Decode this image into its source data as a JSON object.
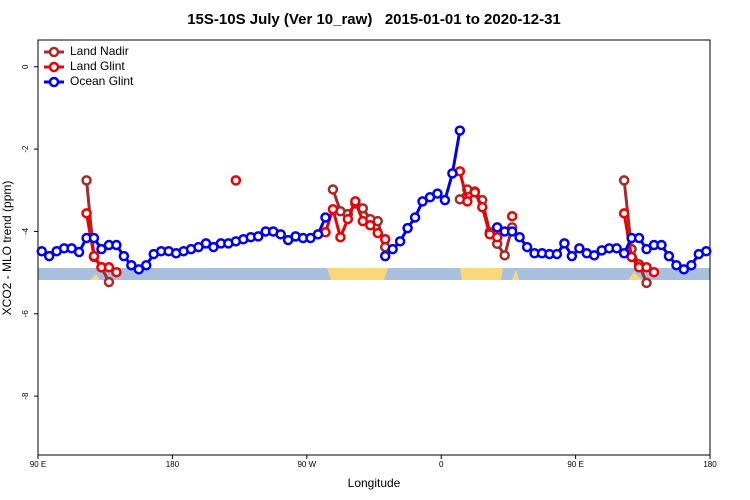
{
  "chart_data": {
    "type": "line",
    "title": "15S-10S July (Ver 10_raw)   2015-01-01 to 2020-12-31",
    "x_label": "Longitude",
    "y_label": "XCO2 - MLO trend (ppm)",
    "xlim": [
      90,
      540
    ],
    "ylim": [
      -9.43,
      0.65
    ],
    "xticks": [
      {
        "value": 90,
        "label": "90 E"
      },
      {
        "value": 180,
        "label": "180"
      },
      {
        "value": 270,
        "label": "90 W"
      },
      {
        "value": 360,
        "label": "0"
      },
      {
        "value": 450,
        "label": "90 E"
      },
      {
        "value": 540,
        "label": "180"
      }
    ],
    "yticks": [
      0,
      -2,
      -4,
      -6,
      -8
    ],
    "legend": "top-left",
    "x": [
      92.5,
      97.5,
      102.5,
      107.5,
      112.5,
      117.5,
      122.5,
      127.5,
      132.5,
      137.5,
      142.5,
      147.5,
      152.5,
      157.5,
      162.5,
      167.5,
      172.5,
      177.5,
      182.5,
      187.5,
      192.5,
      197.5,
      202.5,
      207.5,
      212.5,
      217.5,
      222.5,
      227.5,
      232.5,
      237.5,
      242.5,
      247.5,
      252.5,
      257.5,
      262.5,
      267.5,
      272.5,
      277.5,
      282.5,
      287.5,
      292.5,
      297.5,
      302.5,
      307.5,
      312.5,
      317.5,
      322.5,
      327.5,
      332.5,
      337.5,
      342.5,
      347.5,
      352.5,
      357.5,
      362.5,
      367.5,
      372.5,
      377.5,
      382.5,
      387.5,
      392.5,
      397.5,
      402.5,
      407.5,
      412.5,
      417.5,
      422.5,
      427.5,
      432.5,
      437.5,
      442.5,
      447.5,
      452.5,
      457.5,
      462.5,
      467.5,
      472.5,
      477.5,
      482.5,
      487.5,
      492.5,
      497.5,
      502.5,
      507.5,
      512.5,
      517.5,
      522.5,
      527.5,
      532.5,
      537.5
    ],
    "series": [
      {
        "name": "Land Nadir",
        "color": "#a52a2a",
        "values": [
          null,
          null,
          null,
          null,
          null,
          null,
          -2.76,
          -4.62,
          -4.87,
          -5.23,
          null,
          null,
          null,
          null,
          null,
          null,
          null,
          null,
          null,
          null,
          null,
          null,
          null,
          null,
          null,
          null,
          null,
          null,
          null,
          null,
          null,
          null,
          null,
          null,
          null,
          null,
          null,
          null,
          null,
          -2.98,
          -3.51,
          -3.58,
          -3.32,
          -3.44,
          -3.7,
          -3.75,
          -4.38,
          null,
          null,
          null,
          null,
          null,
          null,
          null,
          null,
          null,
          -3.22,
          -2.98,
          -3.03,
          -3.24,
          -4.02,
          -4.3,
          -4.58,
          -3.9,
          null,
          null,
          null,
          null,
          null,
          null,
          null,
          null,
          null,
          null,
          null,
          null,
          null,
          null,
          -2.76,
          -4.43,
          -4.8,
          -5.25,
          null,
          null,
          null,
          null,
          null,
          null,
          null,
          null
        ]
      },
      {
        "name": "Land Glint",
        "color": "#ee0000",
        "values": [
          null,
          null,
          null,
          null,
          null,
          null,
          -3.56,
          -4.6,
          -4.87,
          -4.87,
          -4.99,
          null,
          null,
          null,
          null,
          null,
          null,
          null,
          null,
          null,
          null,
          null,
          null,
          null,
          null,
          null,
          -2.76,
          null,
          null,
          null,
          null,
          null,
          null,
          null,
          null,
          null,
          null,
          null,
          -4.02,
          -3.46,
          -4.14,
          -3.7,
          -3.27,
          -3.75,
          -3.85,
          -4.04,
          -4.19,
          null,
          null,
          null,
          null,
          null,
          null,
          null,
          null,
          null,
          -2.54,
          -3.27,
          -3.05,
          -3.41,
          -4.07,
          -4.14,
          null,
          -3.63,
          null,
          null,
          null,
          null,
          null,
          null,
          null,
          null,
          null,
          null,
          null,
          null,
          null,
          null,
          -3.56,
          -4.62,
          -4.87,
          -4.87,
          -4.99,
          null,
          null,
          null,
          null,
          null,
          null,
          null
        ]
      },
      {
        "name": "Ocean Glint",
        "color": "#0000ee",
        "values": [
          -4.48,
          -4.6,
          -4.48,
          -4.41,
          -4.41,
          -4.5,
          -4.16,
          -4.16,
          -4.43,
          -4.33,
          -4.33,
          -4.6,
          -4.82,
          -4.92,
          -4.82,
          -4.55,
          -4.48,
          -4.48,
          -4.53,
          -4.48,
          -4.43,
          -4.38,
          -4.29,
          -4.38,
          -4.29,
          -4.29,
          -4.24,
          -4.19,
          -4.14,
          -4.12,
          -4.0,
          -4.0,
          -4.07,
          -4.21,
          -4.12,
          -4.16,
          -4.16,
          -4.07,
          -3.66,
          null,
          null,
          null,
          null,
          null,
          null,
          null,
          -4.6,
          -4.43,
          -4.24,
          -3.92,
          -3.66,
          -3.27,
          -3.17,
          -3.08,
          -3.24,
          -2.59,
          -1.55,
          null,
          null,
          null,
          null,
          -3.9,
          -4.0,
          -4.0,
          -4.14,
          -4.38,
          -4.53,
          -4.53,
          -4.55,
          -4.55,
          -4.29,
          -4.6,
          -4.41,
          -4.53,
          -4.58,
          -4.46,
          -4.41,
          -4.41,
          -4.53,
          -4.16,
          -4.16,
          -4.43,
          -4.33,
          -4.33,
          -4.6,
          -4.82,
          -4.92,
          -4.82,
          -4.55,
          -4.48
        ]
      }
    ]
  }
}
